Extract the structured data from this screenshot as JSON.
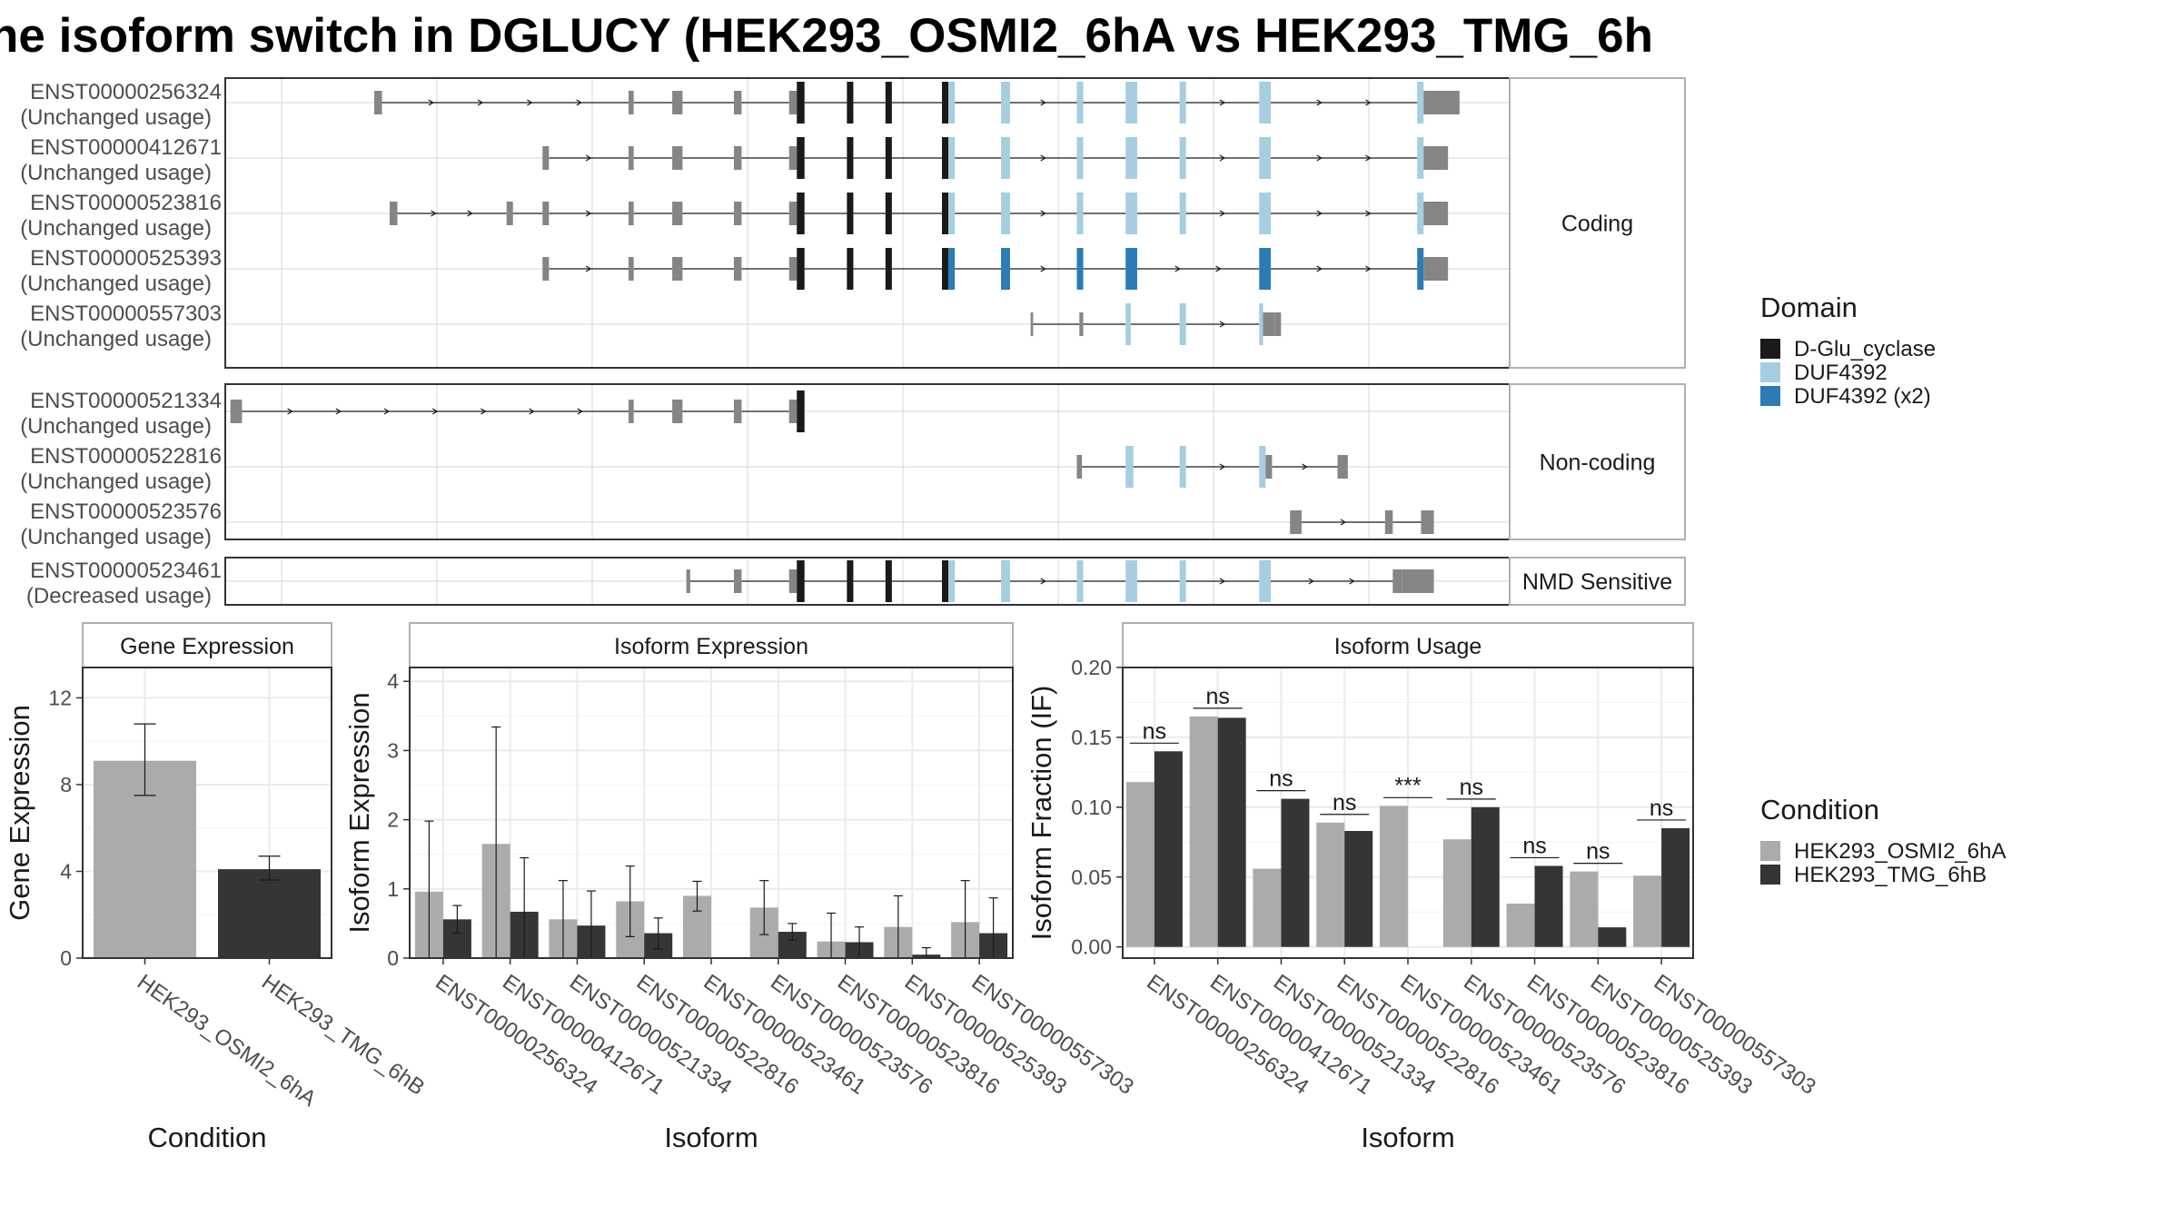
{
  "title": "ne isoform switch in DGLUCY (HEK293_OSMI2_6hA vs HEK293_TMG_6h",
  "colors": {
    "osmi": "#ababab",
    "tmg": "#353535",
    "d_glu": "#1a1a1a",
    "duf": "#a6cde0",
    "duf2": "#2b7cb6",
    "utr": "#858585",
    "panel_border": "#333333",
    "strip_border": "#b0b0b0",
    "grid": "#ebebeb"
  },
  "structure": {
    "groups": [
      {
        "label": "Coding",
        "isoforms": [
          {
            "id": "ENST00000256324",
            "usage": "(Unchanged usage)",
            "exons": [
              {
                "s": 0.116,
                "e": 0.122,
                "k": "u"
              },
              {
                "s": 0.314,
                "e": 0.318,
                "k": "u"
              },
              {
                "s": 0.348,
                "e": 0.356,
                "k": "u"
              },
              {
                "s": 0.396,
                "e": 0.402,
                "k": "u"
              },
              {
                "s": 0.439,
                "e": 0.445,
                "k": "u"
              },
              {
                "s": 0.445,
                "e": 0.451,
                "k": "d"
              },
              {
                "s": 0.484,
                "e": 0.489,
                "k": "d"
              },
              {
                "s": 0.514,
                "e": 0.519,
                "k": "d"
              },
              {
                "s": 0.558,
                "e": 0.563,
                "k": "d"
              },
              {
                "s": 0.563,
                "e": 0.568,
                "k": "b"
              },
              {
                "s": 0.604,
                "e": 0.611,
                "k": "b"
              },
              {
                "s": 0.663,
                "e": 0.668,
                "k": "b"
              },
              {
                "s": 0.701,
                "e": 0.71,
                "k": "b"
              },
              {
                "s": 0.743,
                "e": 0.748,
                "k": "b"
              },
              {
                "s": 0.805,
                "e": 0.814,
                "k": "b"
              },
              {
                "s": 0.928,
                "e": 0.933,
                "k": "b"
              },
              {
                "s": 0.933,
                "e": 0.961,
                "k": "u"
              }
            ]
          },
          {
            "id": "ENST00000412671",
            "usage": "(Unchanged usage)",
            "exons": [
              {
                "s": 0.247,
                "e": 0.252,
                "k": "u"
              },
              {
                "s": 0.314,
                "e": 0.318,
                "k": "u"
              },
              {
                "s": 0.348,
                "e": 0.356,
                "k": "u"
              },
              {
                "s": 0.396,
                "e": 0.402,
                "k": "u"
              },
              {
                "s": 0.439,
                "e": 0.445,
                "k": "u"
              },
              {
                "s": 0.445,
                "e": 0.451,
                "k": "d"
              },
              {
                "s": 0.484,
                "e": 0.489,
                "k": "d"
              },
              {
                "s": 0.514,
                "e": 0.519,
                "k": "d"
              },
              {
                "s": 0.558,
                "e": 0.563,
                "k": "d"
              },
              {
                "s": 0.563,
                "e": 0.568,
                "k": "b"
              },
              {
                "s": 0.604,
                "e": 0.611,
                "k": "b"
              },
              {
                "s": 0.663,
                "e": 0.668,
                "k": "b"
              },
              {
                "s": 0.701,
                "e": 0.71,
                "k": "b"
              },
              {
                "s": 0.743,
                "e": 0.748,
                "k": "b"
              },
              {
                "s": 0.805,
                "e": 0.814,
                "k": "b"
              },
              {
                "s": 0.928,
                "e": 0.933,
                "k": "b"
              },
              {
                "s": 0.933,
                "e": 0.952,
                "k": "u"
              }
            ]
          },
          {
            "id": "ENST00000523816",
            "usage": "(Unchanged usage)",
            "exons": [
              {
                "s": 0.128,
                "e": 0.134,
                "k": "u"
              },
              {
                "s": 0.219,
                "e": 0.224,
                "k": "u"
              },
              {
                "s": 0.247,
                "e": 0.252,
                "k": "u"
              },
              {
                "s": 0.314,
                "e": 0.318,
                "k": "u"
              },
              {
                "s": 0.348,
                "e": 0.356,
                "k": "u"
              },
              {
                "s": 0.396,
                "e": 0.402,
                "k": "u"
              },
              {
                "s": 0.439,
                "e": 0.445,
                "k": "u"
              },
              {
                "s": 0.445,
                "e": 0.451,
                "k": "d"
              },
              {
                "s": 0.484,
                "e": 0.489,
                "k": "d"
              },
              {
                "s": 0.514,
                "e": 0.519,
                "k": "d"
              },
              {
                "s": 0.558,
                "e": 0.563,
                "k": "d"
              },
              {
                "s": 0.563,
                "e": 0.568,
                "k": "b"
              },
              {
                "s": 0.604,
                "e": 0.611,
                "k": "b"
              },
              {
                "s": 0.663,
                "e": 0.668,
                "k": "b"
              },
              {
                "s": 0.701,
                "e": 0.71,
                "k": "b"
              },
              {
                "s": 0.743,
                "e": 0.748,
                "k": "b"
              },
              {
                "s": 0.805,
                "e": 0.814,
                "k": "b"
              },
              {
                "s": 0.928,
                "e": 0.933,
                "k": "b"
              },
              {
                "s": 0.933,
                "e": 0.952,
                "k": "u"
              }
            ]
          },
          {
            "id": "ENST00000525393",
            "usage": "(Unchanged usage)",
            "exons": [
              {
                "s": 0.247,
                "e": 0.252,
                "k": "u"
              },
              {
                "s": 0.314,
                "e": 0.318,
                "k": "u"
              },
              {
                "s": 0.348,
                "e": 0.356,
                "k": "u"
              },
              {
                "s": 0.396,
                "e": 0.402,
                "k": "u"
              },
              {
                "s": 0.439,
                "e": 0.445,
                "k": "u"
              },
              {
                "s": 0.445,
                "e": 0.451,
                "k": "d"
              },
              {
                "s": 0.484,
                "e": 0.489,
                "k": "d"
              },
              {
                "s": 0.514,
                "e": 0.519,
                "k": "d"
              },
              {
                "s": 0.558,
                "e": 0.563,
                "k": "d"
              },
              {
                "s": 0.563,
                "e": 0.568,
                "k": "B"
              },
              {
                "s": 0.604,
                "e": 0.611,
                "k": "B"
              },
              {
                "s": 0.663,
                "e": 0.668,
                "k": "B"
              },
              {
                "s": 0.701,
                "e": 0.71,
                "k": "B"
              },
              {
                "s": 0.805,
                "e": 0.814,
                "k": "B"
              },
              {
                "s": 0.928,
                "e": 0.933,
                "k": "B"
              },
              {
                "s": 0.933,
                "e": 0.952,
                "k": "u"
              }
            ]
          },
          {
            "id": "ENST00000557303",
            "usage": "(Unchanged usage)",
            "exons": [
              {
                "s": 0.627,
                "e": 0.629,
                "k": "u"
              },
              {
                "s": 0.665,
                "e": 0.668,
                "k": "u"
              },
              {
                "s": 0.701,
                "e": 0.705,
                "k": "b"
              },
              {
                "s": 0.743,
                "e": 0.748,
                "k": "b"
              },
              {
                "s": 0.805,
                "e": 0.808,
                "k": "b"
              },
              {
                "s": 0.808,
                "e": 0.817,
                "k": "u"
              },
              {
                "s": 0.817,
                "e": 0.822,
                "k": "u"
              }
            ]
          }
        ]
      },
      {
        "label": "Non-coding",
        "isoforms": [
          {
            "id": "ENST00000521334",
            "usage": "(Unchanged usage)",
            "exons": [
              {
                "s": 0.004,
                "e": 0.013,
                "k": "u"
              },
              {
                "s": 0.314,
                "e": 0.318,
                "k": "u"
              },
              {
                "s": 0.348,
                "e": 0.356,
                "k": "u"
              },
              {
                "s": 0.396,
                "e": 0.402,
                "k": "u"
              },
              {
                "s": 0.439,
                "e": 0.445,
                "k": "u"
              },
              {
                "s": 0.445,
                "e": 0.451,
                "k": "d"
              }
            ]
          },
          {
            "id": "ENST00000522816",
            "usage": "(Unchanged usage)",
            "exons": [
              {
                "s": 0.663,
                "e": 0.667,
                "k": "u"
              },
              {
                "s": 0.701,
                "e": 0.707,
                "k": "b"
              },
              {
                "s": 0.743,
                "e": 0.748,
                "k": "b"
              },
              {
                "s": 0.805,
                "e": 0.81,
                "k": "b"
              },
              {
                "s": 0.81,
                "e": 0.815,
                "k": "u"
              },
              {
                "s": 0.866,
                "e": 0.874,
                "k": "u"
              }
            ]
          },
          {
            "id": "ENST00000523576",
            "usage": "(Unchanged usage)",
            "exons": [
              {
                "s": 0.829,
                "e": 0.838,
                "k": "u"
              },
              {
                "s": 0.903,
                "e": 0.909,
                "k": "u"
              },
              {
                "s": 0.931,
                "e": 0.941,
                "k": "u"
              }
            ]
          }
        ]
      },
      {
        "label": "NMD Sensitive",
        "isoforms": [
          {
            "id": "ENST00000523461",
            "usage": "(Decreased usage)",
            "exons": [
              {
                "s": 0.359,
                "e": 0.362,
                "k": "u"
              },
              {
                "s": 0.396,
                "e": 0.402,
                "k": "u"
              },
              {
                "s": 0.439,
                "e": 0.445,
                "k": "u"
              },
              {
                "s": 0.445,
                "e": 0.451,
                "k": "d"
              },
              {
                "s": 0.484,
                "e": 0.489,
                "k": "d"
              },
              {
                "s": 0.514,
                "e": 0.519,
                "k": "d"
              },
              {
                "s": 0.558,
                "e": 0.563,
                "k": "d"
              },
              {
                "s": 0.563,
                "e": 0.568,
                "k": "b"
              },
              {
                "s": 0.604,
                "e": 0.611,
                "k": "b"
              },
              {
                "s": 0.663,
                "e": 0.668,
                "k": "b"
              },
              {
                "s": 0.701,
                "e": 0.71,
                "k": "b"
              },
              {
                "s": 0.743,
                "e": 0.748,
                "k": "b"
              },
              {
                "s": 0.805,
                "e": 0.814,
                "k": "b"
              },
              {
                "s": 0.909,
                "e": 0.916,
                "k": "u"
              },
              {
                "s": 0.916,
                "e": 0.941,
                "k": "u"
              }
            ]
          }
        ]
      }
    ]
  },
  "legend_domain": {
    "title": "Domain",
    "items": [
      {
        "label": "D-Glu_cyclase",
        "color": "#1a1a1a"
      },
      {
        "label": "DUF4392",
        "color": "#a6cde0"
      },
      {
        "label": "DUF4392 (x2)",
        "color": "#2b7cb6"
      }
    ]
  },
  "legend_condition": {
    "title": "Condition",
    "items": [
      {
        "label": "HEK293_OSMI2_6hA",
        "color": "#ababab"
      },
      {
        "label": "HEK293_TMG_6hB",
        "color": "#353535"
      }
    ]
  },
  "chart_data": [
    {
      "type": "bar",
      "title": "Gene Expression",
      "xlabel": "Condition",
      "ylabel": "Gene Expression",
      "ylim": [
        0,
        13.4
      ],
      "yticks": [
        "0",
        "4",
        "8",
        "12"
      ],
      "categories": [
        "HEK293_OSMI2_6hA",
        "HEK293_TMG_6hB"
      ],
      "values": [
        9.1,
        4.1
      ],
      "error_low": [
        7.5,
        3.6
      ],
      "error_high": [
        10.8,
        4.7
      ]
    },
    {
      "type": "bar",
      "title": "Isoform Expression",
      "xlabel": "Isoform",
      "ylabel": "Isoform Expression",
      "ylim": [
        0,
        4.2
      ],
      "yticks": [
        "0",
        "1",
        "2",
        "3",
        "4"
      ],
      "categories": [
        "ENST00000256324",
        "ENST00000412671",
        "ENST00000521334",
        "ENST00000522816",
        "ENST00000523461",
        "ENST00000523576",
        "ENST00000523816",
        "ENST00000525393",
        "ENST00000557303"
      ],
      "series": [
        {
          "name": "HEK293_OSMI2_6hA",
          "values": [
            0.96,
            1.65,
            0.56,
            0.82,
            0.9,
            0.73,
            0.24,
            0.45,
            0.52
          ],
          "error_low": [
            0,
            0,
            0,
            0.31,
            0.68,
            0.34,
            0,
            0,
            0
          ],
          "error_high": [
            1.98,
            3.34,
            1.12,
            1.33,
            1.11,
            1.12,
            0.65,
            0.9,
            1.12
          ]
        },
        {
          "name": "HEK293_TMG_6hB",
          "values": [
            0.56,
            0.67,
            0.47,
            0.36,
            0,
            0.38,
            0.23,
            0.05,
            0.36
          ],
          "error_low": [
            0.36,
            0,
            0,
            0.13,
            0,
            0.26,
            0,
            0,
            0
          ],
          "error_high": [
            0.76,
            1.45,
            0.97,
            0.58,
            0,
            0.5,
            0.45,
            0.15,
            0.87
          ]
        }
      ]
    },
    {
      "type": "bar",
      "title": "Isoform Usage",
      "xlabel": "Isoform",
      "ylabel": "Isoform Fraction (IF)",
      "ylim": [
        -0.008,
        0.2
      ],
      "yticks": [
        "0.00",
        "0.05",
        "0.10",
        "0.15",
        "0.20"
      ],
      "categories": [
        "ENST00000256324",
        "ENST00000412671",
        "ENST00000521334",
        "ENST00000522816",
        "ENST00000523461",
        "ENST00000523576",
        "ENST00000523816",
        "ENST00000525393",
        "ENST00000557303"
      ],
      "series": [
        {
          "name": "HEK293_OSMI2_6hA",
          "values": [
            0.118,
            0.165,
            0.056,
            0.089,
            0.101,
            0.077,
            0.031,
            0.054,
            0.051
          ]
        },
        {
          "name": "HEK293_TMG_6hB",
          "values": [
            0.14,
            0.164,
            0.106,
            0.083,
            0,
            0.1,
            0.058,
            0.014,
            0.085
          ]
        }
      ],
      "significance": [
        "ns",
        "ns",
        "ns",
        "ns",
        "***",
        "ns",
        "ns",
        "ns",
        "ns"
      ]
    }
  ]
}
